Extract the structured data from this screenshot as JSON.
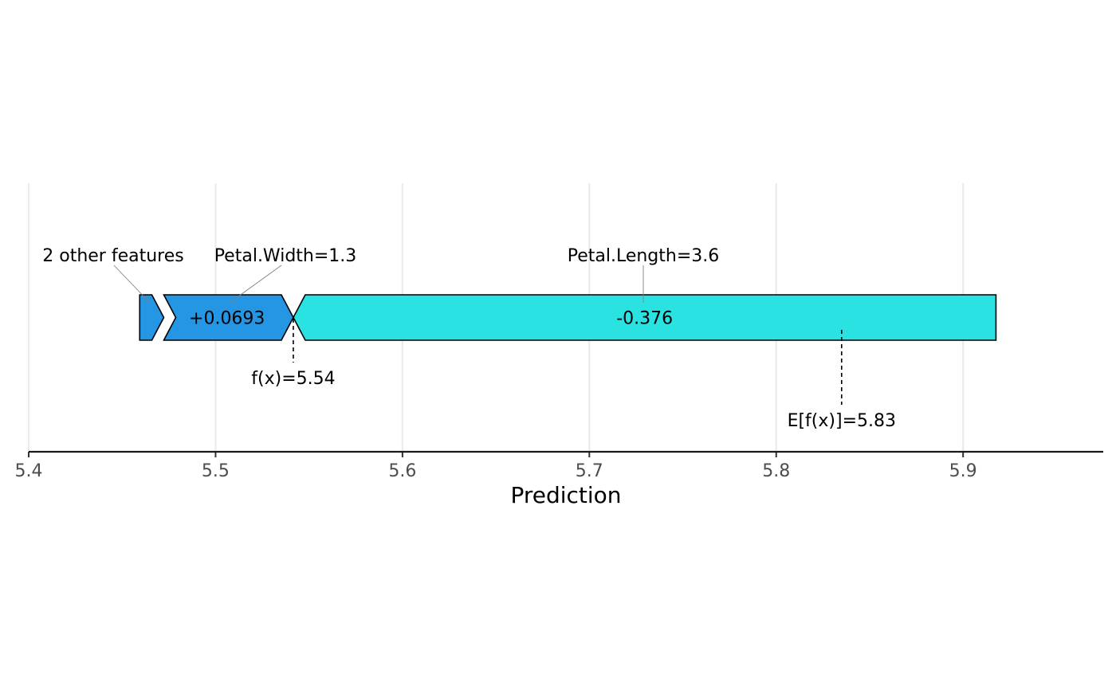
{
  "chart_data": {
    "type": "force",
    "xlabel": "Prediction",
    "xlim": [
      5.4,
      5.975
    ],
    "x_ticks": [
      "5.4",
      "5.5",
      "5.6",
      "5.7",
      "5.8",
      "5.9"
    ],
    "grid": "vertical",
    "segments": [
      {
        "feature": "2 other features",
        "start": 5.4594,
        "end": 5.4723,
        "value_label": "",
        "color": "#2596e4"
      },
      {
        "feature": "Petal.Width=1.3",
        "start": 5.4723,
        "end": 5.5416,
        "value_label": "+0.0693",
        "color": "#2596e4"
      },
      {
        "feature": "Petal.Length=3.6",
        "start": 5.5416,
        "end": 5.9176,
        "value_label": "-0.376",
        "color": "#2ae2e2"
      }
    ],
    "markers": [
      {
        "label": "f(x)=5.54",
        "value": 5.5416
      },
      {
        "label": "E[f(x)]=5.83",
        "value": 5.835
      }
    ]
  }
}
